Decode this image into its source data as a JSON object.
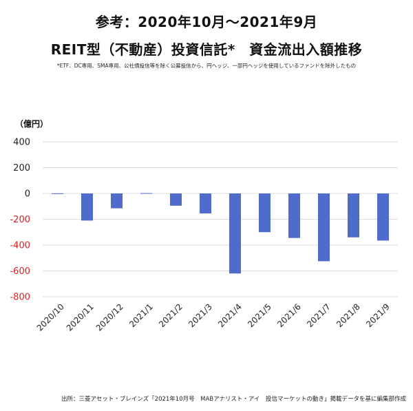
{
  "title_line1": "参考：2020年10月～2021年9月",
  "title_line2": "REIT型（不動産）投資信託*　資金流出入額推移",
  "footnote": "*ETF、DC専用、SMA専用、公社債投信等を除く公募投信から、円ヘッジ、一部円ヘッジを使用しているファンドを除外したもの",
  "source": "出所：三菱アセット・ブレインズ「2021年10月号　MABアナリスト・アイ　投信マーケットの動き」掲載データを基に編集部作成",
  "colors": {
    "bar": "#4f6bcc",
    "negative_tick": "#e02020",
    "positive_tick": "#222222",
    "grid": "#d9d9d9"
  },
  "chart_data": {
    "type": "bar",
    "unit_label": "（億円）",
    "categories": [
      "2020/10",
      "2020/11",
      "2020/12",
      "2021/1",
      "2021/2",
      "2021/3",
      "2021/4",
      "2021/5",
      "2021/6",
      "2021/7",
      "2021/8",
      "2021/9"
    ],
    "values": [
      1,
      -210,
      -115,
      3,
      -95,
      -155,
      -620,
      -300,
      -345,
      -525,
      -340,
      -365
    ],
    "yticks": [
      400,
      200,
      0,
      -200,
      -400,
      -600,
      -800
    ],
    "ylim": [
      -800,
      400
    ],
    "grid": true,
    "legend": "none"
  }
}
